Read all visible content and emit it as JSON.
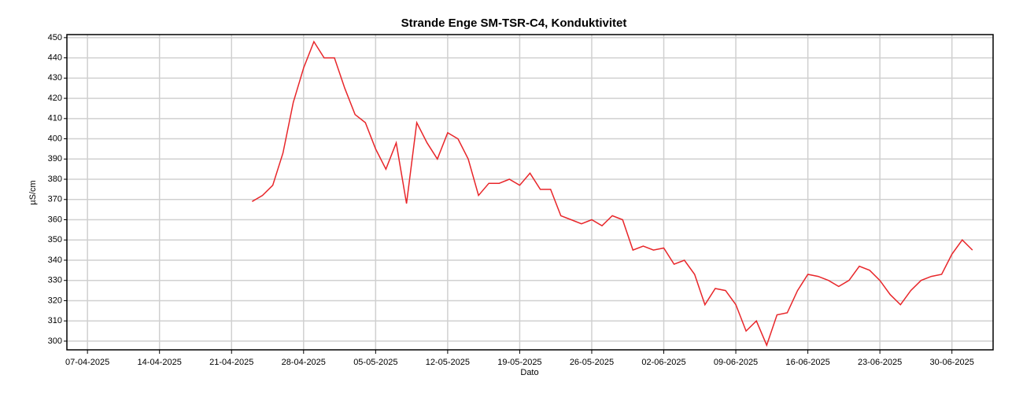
{
  "chart_data": {
    "type": "line",
    "title": "Strande Enge SM-TSR-C4, Konduktivitet",
    "x_label": "Dato",
    "y_label": "µS/cm",
    "x": [
      "2025-04-23",
      "2025-04-24",
      "2025-04-25",
      "2025-04-26",
      "2025-04-27",
      "2025-04-28",
      "2025-04-29",
      "2025-04-30",
      "2025-05-01",
      "2025-05-02",
      "2025-05-03",
      "2025-05-04",
      "2025-05-05",
      "2025-05-06",
      "2025-05-07",
      "2025-05-08",
      "2025-05-09",
      "2025-05-10",
      "2025-05-11",
      "2025-05-12",
      "2025-05-13",
      "2025-05-14",
      "2025-05-15",
      "2025-05-16",
      "2025-05-17",
      "2025-05-18",
      "2025-05-19",
      "2025-05-20",
      "2025-05-21",
      "2025-05-22",
      "2025-05-23",
      "2025-05-24",
      "2025-05-25",
      "2025-05-26",
      "2025-05-27",
      "2025-05-28",
      "2025-05-29",
      "2025-05-30",
      "2025-05-31",
      "2025-06-01",
      "2025-06-02",
      "2025-06-03",
      "2025-06-04",
      "2025-06-05",
      "2025-06-06",
      "2025-06-07",
      "2025-06-08",
      "2025-06-09",
      "2025-06-10",
      "2025-06-11",
      "2025-06-12",
      "2025-06-13",
      "2025-06-14",
      "2025-06-15",
      "2025-06-16",
      "2025-06-17",
      "2025-06-18",
      "2025-06-19",
      "2025-06-20",
      "2025-06-21",
      "2025-06-22",
      "2025-06-23",
      "2025-06-24",
      "2025-06-25",
      "2025-06-26",
      "2025-06-27",
      "2025-06-28",
      "2025-06-29",
      "2025-06-30",
      "2025-07-01",
      "2025-07-02"
    ],
    "series": [
      {
        "name": "Konduktivitet",
        "color": "#e8262a",
        "values": [
          369,
          372,
          377,
          393,
          418,
          435,
          448,
          440,
          440,
          425,
          412,
          408,
          395,
          385,
          398,
          368,
          408,
          398,
          390,
          403,
          400,
          390,
          372,
          378,
          378,
          380,
          377,
          383,
          375,
          375,
          362,
          360,
          358,
          360,
          357,
          362,
          360,
          345,
          347,
          345,
          346,
          338,
          340,
          333,
          318,
          326,
          325,
          318,
          305,
          310,
          298,
          313,
          314,
          325,
          333,
          332,
          330,
          327,
          330,
          337,
          335,
          330,
          323,
          318,
          325,
          330,
          332,
          333,
          343,
          350,
          345
        ]
      }
    ],
    "xlim": [
      "2025-04-05",
      "2025-07-04"
    ],
    "xticks": [
      {
        "value": "2025-04-07",
        "label": "07-04-2025"
      },
      {
        "value": "2025-04-14",
        "label": "14-04-2025"
      },
      {
        "value": "2025-04-21",
        "label": "21-04-2025"
      },
      {
        "value": "2025-04-28",
        "label": "28-04-2025"
      },
      {
        "value": "2025-05-05",
        "label": "05-05-2025"
      },
      {
        "value": "2025-05-12",
        "label": "12-05-2025"
      },
      {
        "value": "2025-05-19",
        "label": "19-05-2025"
      },
      {
        "value": "2025-05-26",
        "label": "26-05-2025"
      },
      {
        "value": "2025-06-02",
        "label": "02-06-2025"
      },
      {
        "value": "2025-06-09",
        "label": "09-06-2025"
      },
      {
        "value": "2025-06-16",
        "label": "16-06-2025"
      },
      {
        "value": "2025-06-23",
        "label": "23-06-2025"
      },
      {
        "value": "2025-06-30",
        "label": "30-06-2025"
      }
    ],
    "ylim": [
      295.7,
      451.5
    ],
    "yticks": [
      300,
      310,
      320,
      330,
      340,
      350,
      360,
      370,
      380,
      390,
      400,
      410,
      420,
      430,
      440,
      450
    ],
    "grid": true
  }
}
